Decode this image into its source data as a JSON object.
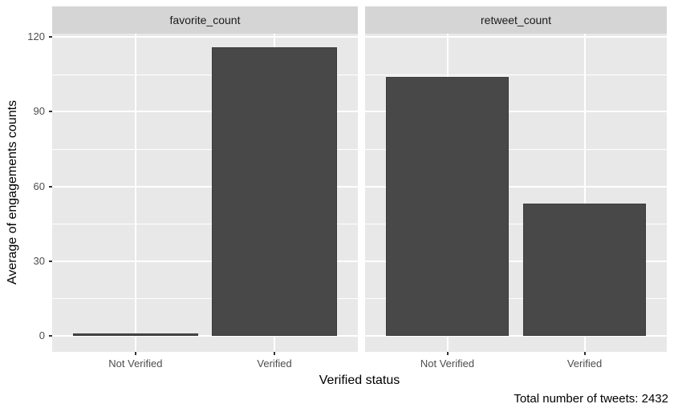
{
  "chart_data": {
    "type": "bar",
    "faceted": true,
    "facets": [
      {
        "label": "favorite_count",
        "values": [
          1,
          116
        ]
      },
      {
        "label": "retweet_count",
        "values": [
          104,
          53
        ]
      }
    ],
    "categories": [
      "Not Verified",
      "Verified"
    ],
    "xlabel": "Verified status",
    "ylabel": "Average of engagements counts",
    "y_ticks": [
      0,
      30,
      60,
      90,
      120
    ],
    "y_minor_ticks": [
      15,
      45,
      75,
      105
    ],
    "ylim": [
      -6,
      122.5
    ],
    "caption": "Total number of tweets: 2432",
    "legend": "none",
    "grid": "on",
    "colors": {
      "bar_fill": "#484848",
      "bar_border": "#3a3a3a",
      "panel_bg": "#e8e8e8",
      "strip_bg": "#d5d5d5",
      "grid_line": "#ffffff",
      "tick_mark": "#333333",
      "tick_text": "#4d4d4d",
      "title_text": "#000000"
    }
  }
}
